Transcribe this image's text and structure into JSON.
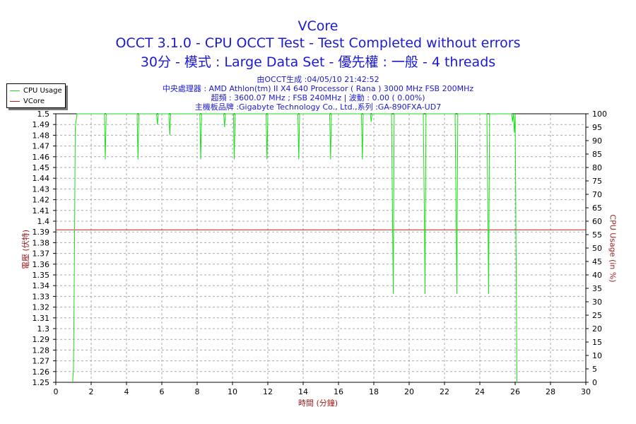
{
  "header": {
    "title": "VCore",
    "line2": "OCCT 3.1.0 - CPU OCCT Test - Test Completed without errors",
    "line3": "30分 - 模式 : Large Data Set - 優先權 : 一般 - 4 threads",
    "info1": "由OCCT生成 :04/05/10 21:42:52",
    "info2": "中央處理器 : AMD Athlon(tm) II X4 640 Processor ( Rana ) 3000 MHz FSB 200MHz",
    "info3": "超頻 : 3600.07 MHz ; FSB 240MHz | 波動 : 0.00 ( 0.00%)",
    "info4": "主機板品牌 :Gigabyte Technology Co., Ltd.,系列 :GA-890FXA-UD7"
  },
  "legend": {
    "items": [
      {
        "label": "CPU Usage",
        "color": "#19e019"
      },
      {
        "label": "VCore",
        "color": "#b22222"
      }
    ]
  },
  "chart_data": {
    "type": "line",
    "xlabel": "時間 (分鐘)",
    "ylabel_left": "電壓 (伏特)",
    "ylabel_right": "CPU Usage (in %)",
    "xlim": [
      0,
      30
    ],
    "ylim_left": [
      1.25,
      1.5
    ],
    "ylim_right": [
      0,
      100
    ],
    "x_ticks": [
      0,
      2,
      4,
      6,
      8,
      10,
      12,
      14,
      16,
      18,
      20,
      22,
      24,
      26,
      28,
      30
    ],
    "y_left_ticks": [
      "1.25",
      "1.26",
      "1.27",
      "1.28",
      "1.29",
      "1.3",
      "1.31",
      "1.32",
      "1.33",
      "1.34",
      "1.35",
      "1.36",
      "1.37",
      "1.38",
      "1.39",
      "1.4",
      "1.41",
      "1.42",
      "1.43",
      "1.44",
      "1.45",
      "1.46",
      "1.47",
      "1.48",
      "1.49",
      "1.5"
    ],
    "y_right_ticks": [
      0,
      5,
      10,
      15,
      20,
      25,
      30,
      35,
      40,
      45,
      50,
      55,
      60,
      65,
      70,
      75,
      80,
      85,
      90,
      95,
      100
    ],
    "grid": true,
    "series": [
      {
        "name": "VCore",
        "axis": "left",
        "color": "#b22222",
        "x": [
          0,
          30
        ],
        "y": [
          1.392,
          1.392
        ]
      },
      {
        "name": "CPU Usage",
        "axis": "right",
        "color": "#19e019",
        "x": [
          0.95,
          1.0,
          1.05,
          1.1,
          1.2,
          1.3,
          2.75,
          2.8,
          2.85,
          4.6,
          4.65,
          4.7,
          5.7,
          5.75,
          5.8,
          6.4,
          6.45,
          6.5,
          8.15,
          8.2,
          8.25,
          9.5,
          9.55,
          9.6,
          10.05,
          10.1,
          10.15,
          11.9,
          11.95,
          12.0,
          13.7,
          13.75,
          13.8,
          15.5,
          15.55,
          15.6,
          17.3,
          17.35,
          17.4,
          17.8,
          17.85,
          17.9,
          19.0,
          19.05,
          19.1,
          19.15,
          20.8,
          20.85,
          20.9,
          20.95,
          22.6,
          22.65,
          22.7,
          22.75,
          24.4,
          24.45,
          24.5,
          24.55,
          25.8,
          25.85,
          25.9,
          25.95,
          26.0,
          26.05,
          26.1
        ],
        "y": [
          0,
          5,
          45,
          95,
          100,
          100,
          100,
          83,
          100,
          100,
          83,
          100,
          100,
          96,
          100,
          100,
          92,
          100,
          100,
          83,
          100,
          100,
          95,
          100,
          100,
          83,
          100,
          100,
          83,
          100,
          100,
          83,
          100,
          100,
          83,
          100,
          100,
          83,
          100,
          100,
          97,
          100,
          100,
          67,
          33,
          100,
          100,
          67,
          33,
          100,
          100,
          67,
          33,
          100,
          100,
          67,
          33,
          100,
          100,
          97,
          100,
          93,
          100,
          50,
          0
        ]
      }
    ]
  }
}
